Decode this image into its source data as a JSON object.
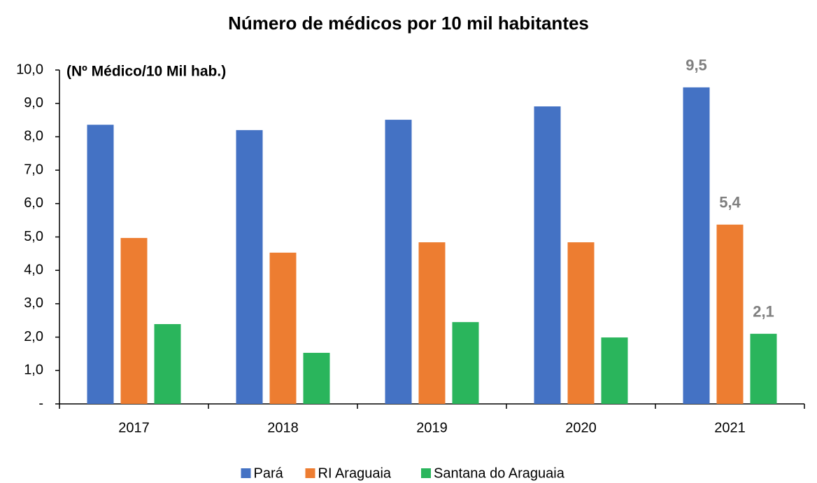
{
  "chart_data": {
    "type": "bar",
    "title": "Número de médicos por 10 mil habitantes",
    "y_axis_label": "(Nº Médico/10 Mil hab.)",
    "categories": [
      "2017",
      "2018",
      "2019",
      "2020",
      "2021"
    ],
    "series": [
      {
        "name": "Pará",
        "color": "#4472c4",
        "values": [
          8.36,
          8.2,
          8.51,
          8.91,
          9.48
        ],
        "value_labels": [
          null,
          null,
          null,
          null,
          "9,5"
        ]
      },
      {
        "name": "RI Araguaia",
        "color": "#ed7d31",
        "values": [
          4.97,
          4.53,
          4.84,
          4.84,
          5.37
        ],
        "value_labels": [
          null,
          null,
          null,
          null,
          "5,4"
        ]
      },
      {
        "name": "Santana do Araguaia",
        "color": "#2ab55c",
        "values": [
          2.39,
          1.53,
          2.45,
          1.99,
          2.1
        ],
        "value_labels": [
          null,
          null,
          null,
          null,
          "2,1"
        ]
      }
    ],
    "ylim": [
      0,
      10
    ],
    "yticks": [
      {
        "value": 0,
        "label": "-"
      },
      {
        "value": 1,
        "label": "1,0"
      },
      {
        "value": 2,
        "label": "2,0"
      },
      {
        "value": 3,
        "label": "3,0"
      },
      {
        "value": 4,
        "label": "4,0"
      },
      {
        "value": 5,
        "label": "5,0"
      },
      {
        "value": 6,
        "label": "6,0"
      },
      {
        "value": 7,
        "label": "7,0"
      },
      {
        "value": 8,
        "label": "8,0"
      },
      {
        "value": 9,
        "label": "9,0"
      },
      {
        "value": 10,
        "label": "10,0"
      }
    ],
    "grid": false,
    "legend": "bottom"
  }
}
